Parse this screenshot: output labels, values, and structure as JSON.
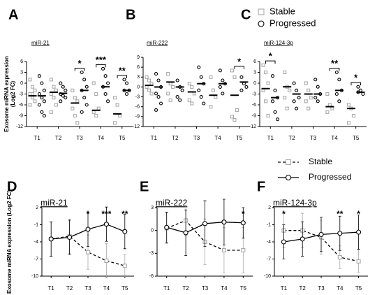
{
  "chart_data": [
    {
      "type": "dotplot",
      "panel": "A",
      "title": "miR-21",
      "ylabel": [
        "Exosome miRNA expression",
        "(Log2 FC)"
      ],
      "categories": [
        "T1",
        "T2",
        "T3",
        "T4",
        "T5"
      ],
      "ylim": [
        -12,
        6
      ],
      "yticks": [
        6,
        3,
        0,
        -3,
        -6,
        -9,
        -12
      ],
      "series": [
        {
          "name": "Stable",
          "color": "#aaaaaa",
          "marker": "square",
          "values": [
            [
              1,
              -1,
              -2,
              -3,
              -4,
              -5,
              -6,
              -3
            ],
            [
              1,
              -1,
              -2,
              -3,
              -4,
              -6,
              -8
            ],
            [
              -2,
              -4,
              -5,
              -7,
              -9,
              -11
            ],
            [
              0,
              -3,
              -7,
              -8,
              -9
            ],
            [
              -4,
              -6,
              -9,
              -11
            ]
          ],
          "medians": [
            -3.5,
            -2.5,
            -5.5,
            -7.5,
            -8.5
          ]
        },
        {
          "name": "Progressed",
          "color": "#000000",
          "marker": "circle",
          "values": [
            [
              2,
              0,
              -2,
              -3,
              -4,
              -5,
              -6,
              -8,
              -9
            ],
            [
              0,
              -1,
              -2,
              -3,
              -3.5,
              -4,
              -5
            ],
            [
              3,
              1,
              -1,
              -2,
              -4,
              -6,
              -8
            ],
            [
              4,
              2,
              0,
              -1,
              -3,
              -5
            ],
            [
              1,
              0,
              -2,
              -2,
              -3
            ]
          ],
          "medians": [
            -3.5,
            -2.8,
            -2,
            -1,
            -2
          ]
        }
      ],
      "annotations": [
        {
          "category": "T3",
          "label": "*"
        },
        {
          "category": "T4",
          "label": "***"
        },
        {
          "category": "T5",
          "label": "**"
        }
      ]
    },
    {
      "type": "dotplot",
      "panel": "B",
      "title": "miR-222",
      "categories": [
        "T1",
        "T2",
        "T3",
        "T4",
        "T5"
      ],
      "ylim": [
        -12,
        9
      ],
      "yticks": [
        9,
        6,
        3,
        0,
        -3,
        -6,
        -9,
        -12
      ],
      "series": [
        {
          "name": "Stable",
          "color": "#aaaaaa",
          "marker": "square",
          "values": [
            [
              3,
              2,
              1,
              0,
              -1,
              -2
            ],
            [
              4,
              1,
              0,
              -2,
              -4
            ],
            [
              1,
              0,
              -2,
              -4,
              -5
            ],
            [
              3,
              -1,
              -3,
              -6
            ],
            [
              5,
              3,
              -7,
              -9,
              -10
            ]
          ],
          "medians": [
            0.5,
            1.5,
            -1.5,
            -2.5,
            -2.5
          ]
        },
        {
          "name": "Progressed",
          "color": "#000000",
          "marker": "circle",
          "values": [
            [
              4,
              2,
              0,
              -2,
              -3,
              -5,
              -7
            ],
            [
              2,
              0,
              -1,
              -3,
              -4
            ],
            [
              6,
              3,
              1,
              -1,
              -3,
              -5
            ],
            [
              5,
              2,
              1,
              0,
              -2
            ],
            [
              3,
              1,
              0,
              -1
            ]
          ],
          "medians": [
            0,
            0,
            1,
            1,
            1.5
          ]
        }
      ],
      "annotations": [
        {
          "category": "T5",
          "label": "*"
        }
      ]
    },
    {
      "type": "dotplot",
      "panel": "C",
      "title": "miR-124-3p",
      "categories": [
        "T1",
        "T2",
        "T3",
        "T4",
        "T5"
      ],
      "ylim": [
        -12,
        6
      ],
      "yticks": [
        6,
        3,
        0,
        -3,
        -6,
        -9,
        -12
      ],
      "series": [
        {
          "name": "Stable",
          "color": "#aaaaaa",
          "marker": "square",
          "values": [
            [
              5,
              3,
              0,
              -2,
              -5,
              -9
            ],
            [
              3,
              -1,
              -2,
              -4,
              -7
            ],
            [
              0,
              -2,
              -4,
              -5,
              -7
            ],
            [
              -3,
              -6,
              -7,
              -8
            ],
            [
              -6,
              -7,
              -9,
              -11
            ]
          ],
          "medians": [
            -1.5,
            -1,
            -3,
            -6.5,
            -7
          ]
        },
        {
          "name": "Progressed",
          "color": "#000000",
          "marker": "circle",
          "values": [
            [
              2,
              -2,
              -4,
              -5,
              -8,
              -10
            ],
            [
              0,
              -2,
              -4,
              -5,
              -7
            ],
            [
              1,
              -1,
              -3,
              -4,
              -5
            ],
            [
              3,
              1,
              -2,
              -3,
              -5
            ],
            [
              -1,
              -2,
              -3,
              -2.5
            ]
          ],
          "medians": [
            -4,
            -3,
            -3,
            -2,
            -2.5
          ]
        }
      ],
      "annotations": [
        {
          "category": "T1",
          "label": "*"
        },
        {
          "category": "T4",
          "label": "**"
        },
        {
          "category": "T5",
          "label": "*"
        }
      ]
    },
    {
      "type": "line",
      "panel": "D",
      "title": "miR-21",
      "ylabel": "Exosome miRNA expression (Log2 FC)",
      "categories": [
        "T1",
        "T2",
        "T3",
        "T4",
        "T5"
      ],
      "ylim": [
        -10,
        2
      ],
      "yticks": [
        2,
        -1,
        -4,
        -7,
        -10
      ],
      "series": [
        {
          "name": "Stable",
          "color": "#aaaaaa",
          "dashed": true,
          "marker": "square",
          "values": [
            -3.5,
            -3,
            -5.8,
            -7.3,
            -8.2
          ],
          "errors": [
            3,
            3,
            3,
            3,
            2
          ]
        },
        {
          "name": "Progressed",
          "color": "#000000",
          "dashed": false,
          "marker": "circle",
          "values": [
            -3.5,
            -3.2,
            -1.8,
            -0.9,
            -2.2
          ],
          "errors": [
            3,
            3,
            3,
            3,
            3
          ]
        }
      ],
      "annotations": [
        {
          "category": "T3",
          "label": "*"
        },
        {
          "category": "T4",
          "label": "***"
        },
        {
          "category": "T5",
          "label": "**"
        }
      ]
    },
    {
      "type": "line",
      "panel": "E",
      "title": "miR-222",
      "categories": [
        "T1",
        "T2",
        "T3",
        "T4",
        "T5"
      ],
      "ylim": [
        -6,
        3
      ],
      "yticks": [
        3,
        0,
        -3,
        -6
      ],
      "series": [
        {
          "name": "Stable",
          "color": "#aaaaaa",
          "dashed": true,
          "marker": "square",
          "values": [
            0.3,
            1.3,
            -1.5,
            -2.6,
            -2.6
          ],
          "errors": [
            2,
            2,
            3,
            3,
            3
          ]
        },
        {
          "name": "Progressed",
          "color": "#000000",
          "dashed": false,
          "marker": "circle",
          "values": [
            0.4,
            -0.3,
            0.9,
            1.1,
            1.0
          ],
          "errors": [
            2,
            3,
            3,
            3,
            2
          ]
        }
      ],
      "annotations": [
        {
          "category": "T5",
          "label": "*"
        }
      ]
    },
    {
      "type": "line",
      "panel": "F",
      "title": "miR-124-3p",
      "categories": [
        "T1",
        "T2",
        "T3",
        "T4",
        "T5"
      ],
      "ylim": [
        -10,
        2
      ],
      "yticks": [
        2,
        -1,
        -4,
        -7,
        -10
      ],
      "series": [
        {
          "name": "Stable",
          "color": "#aaaaaa",
          "dashed": true,
          "marker": "square",
          "values": [
            -2,
            -2,
            -3.2,
            -6.7,
            -7.4
          ],
          "errors": [
            3,
            3,
            3,
            2,
            2
          ]
        },
        {
          "name": "Progressed",
          "color": "#000000",
          "dashed": false,
          "marker": "circle",
          "values": [
            -4,
            -3.5,
            -2.7,
            -2.5,
            -2.3
          ],
          "errors": [
            3,
            3,
            3,
            3,
            3
          ]
        }
      ],
      "annotations": [
        {
          "category": "T1",
          "label": "*"
        },
        {
          "category": "T4",
          "label": "**"
        },
        {
          "category": "T5",
          "label": "*"
        }
      ]
    }
  ]
}
